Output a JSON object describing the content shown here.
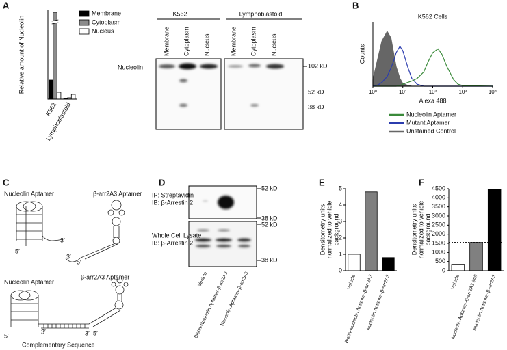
{
  "panel_labels": [
    "A",
    "B",
    "C",
    "D",
    "E",
    "F"
  ],
  "chart_data": [
    {
      "type": "bar",
      "y_label": [
        "Relative amount of Nucleolin"
      ],
      "categories": [
        "K562",
        "Lymphoblastoid"
      ],
      "series": [
        {
          "name": "Membrane",
          "color": "#000000",
          "values": [
            28,
            1
          ]
        },
        {
          "name": "Cytoplasm",
          "color": "#8c8c8c",
          "values": [
            127,
            2
          ]
        },
        {
          "name": "Nucleus",
          "color": "#ffffff",
          "values": [
            10,
            7
          ]
        }
      ],
      "ylim": [
        0,
        130
      ],
      "axis_break": true
    },
    {
      "type": "line",
      "title": "K562 Cells",
      "y_label": [
        "Counts"
      ],
      "x_label": "Alexa 488",
      "log_x": true,
      "x": [
        1,
        1.5,
        2,
        3,
        4,
        5,
        6,
        8,
        10,
        15,
        20,
        30,
        50,
        70,
        100,
        150,
        200,
        300,
        500,
        700,
        1000,
        10000
      ],
      "series": [
        {
          "name": "Nucleolin Aptamer",
          "color": "#3a8a3a",
          "values": [
            0,
            0,
            0,
            0,
            0,
            0,
            0,
            1,
            3,
            6,
            8,
            12,
            22,
            38,
            52,
            58,
            50,
            30,
            10,
            3,
            1,
            0
          ]
        },
        {
          "name": "Mutant Aptamer",
          "color": "#2b3cae",
          "values": [
            0,
            2,
            6,
            15,
            28,
            40,
            52,
            62,
            55,
            28,
            12,
            3,
            0,
            0,
            0,
            0,
            0,
            0,
            0,
            0,
            0,
            0
          ]
        },
        {
          "name": "Unstained Control",
          "color": "#666666",
          "fill": true,
          "values": [
            10,
            45,
            70,
            85,
            75,
            50,
            30,
            12,
            4,
            1,
            0,
            0,
            0,
            0,
            0,
            0,
            0,
            0,
            0,
            0,
            0,
            0
          ]
        }
      ],
      "xlim": [
        1,
        10000
      ],
      "xticks": [
        {
          "value": 1,
          "label": "10⁰"
        },
        {
          "value": 10,
          "label": "10¹"
        },
        {
          "value": 100,
          "label": "10²"
        },
        {
          "value": 1000,
          "label": "10³"
        },
        {
          "value": 10000,
          "label": "10⁴"
        }
      ],
      "ylim": [
        0,
        100
      ]
    },
    {
      "type": "bar",
      "y_label": [
        "Densitometry units",
        "normalized to vehicle",
        "background"
      ],
      "categories": [
        "Vehicle",
        "Biotin-Nucleolin Aptamer-β-arr2A3",
        "Nucleolin Aptamer-β-arr2A3"
      ],
      "values": [
        1,
        4.8,
        0.8
      ],
      "colors": [
        "#ffffff",
        "#808080",
        "#000000"
      ],
      "ylim": [
        0,
        5
      ],
      "yticks": [
        0,
        1,
        2,
        3,
        4,
        5
      ]
    },
    {
      "type": "bar",
      "y_label": [
        "Densitometry units",
        "normalized to vehicle",
        "background"
      ],
      "categories": [
        "Vehicle",
        "Nucleolin Aptamer-β-arr2A3 ###",
        "Nucleolin Aptamer-β-arr2A3"
      ],
      "values": [
        350,
        1550,
        4480
      ],
      "colors": [
        "#ffffff",
        "#808080",
        "#000000"
      ],
      "ylim": [
        0,
        4500
      ],
      "yticks": [
        0,
        500,
        1000,
        1500,
        2000,
        2500,
        3000,
        3500,
        4000,
        4500
      ],
      "reference_line": 1550
    }
  ],
  "blot_a": {
    "groups": [
      "K562",
      "Lymphoblastoid"
    ],
    "lanes": [
      "Membrane",
      "Cytoplasm",
      "Nucleus",
      "Membrane",
      "Cytoplasm",
      "Nucleus"
    ],
    "protein": "Nucleolin",
    "markers": [
      "102 kD",
      "52 kD",
      "38 kD"
    ]
  },
  "diagram_c": {
    "top": {
      "aptamer_1": "Nucleolin Aptamer",
      "aptamer_2": "β-arr2A3 Aptamer",
      "ends": [
        "5′",
        "3′",
        "3′",
        "5′"
      ]
    },
    "bottom": {
      "aptamer_1": "Nucleolin Aptamer",
      "aptamer_2": "β-arr2A3 Aptamer",
      "ends": [
        "5′",
        "3′",
        "3′",
        "5′"
      ],
      "linker": "Complementary Sequence"
    }
  },
  "blot_d": {
    "top_labels": [
      "IP: Streptavidin",
      "IB: β-Arrestin 2"
    ],
    "bottom_labels": [
      "Whole Cell Lysate",
      "IB: β-Arrestin 2"
    ],
    "markers_top": [
      "52 kD",
      "38 kD"
    ],
    "markers_bottom": [
      "52 kD",
      "38 kD"
    ],
    "lanes": [
      "Vehicle",
      "Biotin-Nucleolin Aptamer-β-arr2A3",
      "Nucleolin Aptamer-β-arr2A3"
    ]
  }
}
